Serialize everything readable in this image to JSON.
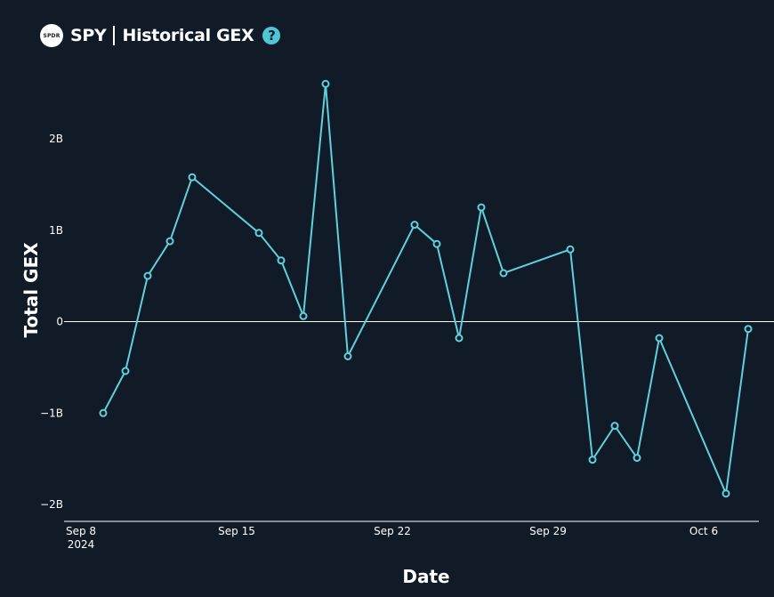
{
  "header": {
    "logo_text": "SPDR",
    "ticker": "SPY",
    "title": "Historical GEX",
    "help_icon": "question-circle-icon"
  },
  "colors": {
    "background": "#111a27",
    "line": "#5fd0dc",
    "axis": "#ffffff",
    "help": "#4fc6d4"
  },
  "chart_data": {
    "type": "line",
    "title": "Historical GEX",
    "xlabel": "Date",
    "ylabel": "Total GEX",
    "ylim": [
      -2.1,
      2.7
    ],
    "y_ticks": [
      {
        "value": 2,
        "label": "2B"
      },
      {
        "value": 1,
        "label": "1B"
      },
      {
        "value": 0,
        "label": "0"
      },
      {
        "value": -1,
        "label": "−1B"
      },
      {
        "value": -2,
        "label": "−2B"
      }
    ],
    "x_ticks": [
      {
        "date": "2024-09-08",
        "label": "Sep 8",
        "sublabel": "2024"
      },
      {
        "date": "2024-09-15",
        "label": "Sep 15",
        "sublabel": ""
      },
      {
        "date": "2024-09-22",
        "label": "Sep 22",
        "sublabel": ""
      },
      {
        "date": "2024-09-29",
        "label": "Sep 29",
        "sublabel": ""
      },
      {
        "date": "2024-10-06",
        "label": "Oct 6",
        "sublabel": ""
      }
    ],
    "xlim": [
      "2024-09-07",
      "2024-10-09"
    ],
    "zero_line": true,
    "series": [
      {
        "points": [
          {
            "date": "2024-09-09",
            "value": -1.0
          },
          {
            "date": "2024-09-10",
            "value": -0.54
          },
          {
            "date": "2024-09-11",
            "value": 0.5
          },
          {
            "date": "2024-09-12",
            "value": 0.88
          },
          {
            "date": "2024-09-13",
            "value": 1.58
          },
          {
            "date": "2024-09-16",
            "value": 0.97
          },
          {
            "date": "2024-09-17",
            "value": 0.67
          },
          {
            "date": "2024-09-18",
            "value": 0.06
          },
          {
            "date": "2024-09-19",
            "value": 2.6
          },
          {
            "date": "2024-09-20",
            "value": -0.38
          },
          {
            "date": "2024-09-23",
            "value": 1.06
          },
          {
            "date": "2024-09-24",
            "value": 0.85
          },
          {
            "date": "2024-09-25",
            "value": -0.18
          },
          {
            "date": "2024-09-26",
            "value": 1.25
          },
          {
            "date": "2024-09-27",
            "value": 0.53
          },
          {
            "date": "2024-09-30",
            "value": 0.79
          },
          {
            "date": "2024-10-01",
            "value": -1.51
          },
          {
            "date": "2024-10-02",
            "value": -1.14
          },
          {
            "date": "2024-10-03",
            "value": -1.49
          },
          {
            "date": "2024-10-04",
            "value": -0.18
          },
          {
            "date": "2024-10-07",
            "value": -1.88
          },
          {
            "date": "2024-10-08",
            "value": -0.08
          }
        ]
      }
    ]
  }
}
